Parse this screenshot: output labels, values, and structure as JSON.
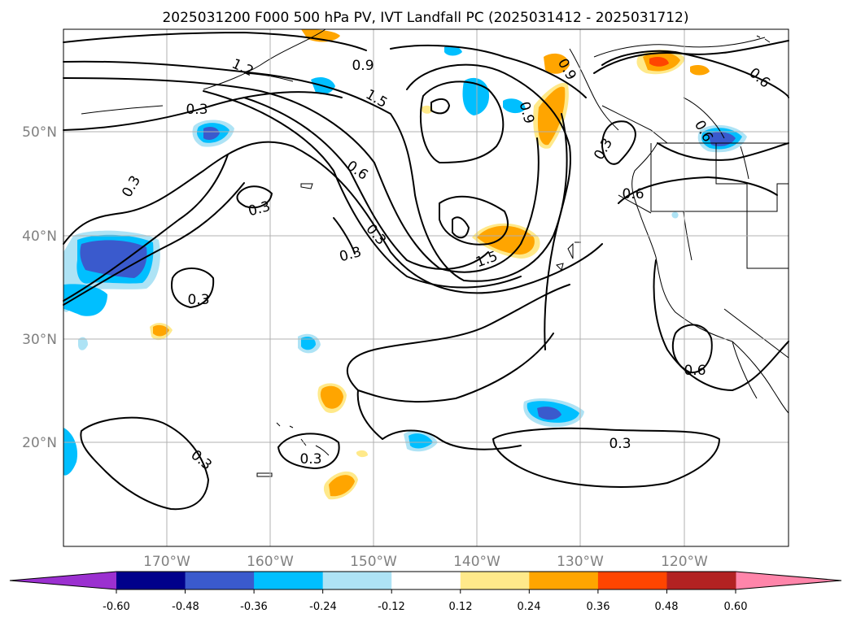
{
  "title": "2025031200 F000 500 hPa PV, IVT Landfall PC (2025031412 - 2025031712)",
  "lat_labels": [
    "50°N",
    "40°N",
    "30°N",
    "20°N"
  ],
  "lon_labels": [
    "170°W",
    "160°W",
    "150°W",
    "140°W",
    "130°W",
    "120°W"
  ],
  "contour_labels": [
    "1.2",
    "0.9",
    "1.5",
    "0.3",
    "0.3",
    "0.6",
    "0.3",
    "0.3",
    "0.3",
    "0.3",
    "1.5",
    "0.3",
    "0.9",
    "0.6",
    "0.6",
    "0.9",
    "0.6",
    "0.6",
    "0.3",
    "0.3",
    "0.3"
  ],
  "colorbar": {
    "ticks": [
      "-0.60",
      "-0.48",
      "-0.36",
      "-0.24",
      "-0.12",
      "0.12",
      "0.24",
      "0.36",
      "0.48",
      "0.60"
    ],
    "colors": [
      "#9b30d0",
      "#00008b",
      "#3a5acd",
      "#00bfff",
      "#aee3f5",
      "#ffffff",
      "#ffe98a",
      "#ffa500",
      "#ff4500",
      "#b22222",
      "#ff85aa"
    ]
  },
  "colors": {
    "pv_contour": "#000000",
    "grid": "#b0b0b0",
    "neg_dark": "#3a5acd",
    "neg_mid": "#00bfff",
    "neg_light": "#aee3f5",
    "pos_light": "#ffe98a",
    "pos_mid": "#ffa500",
    "pos_dark": "#ff4500"
  }
}
